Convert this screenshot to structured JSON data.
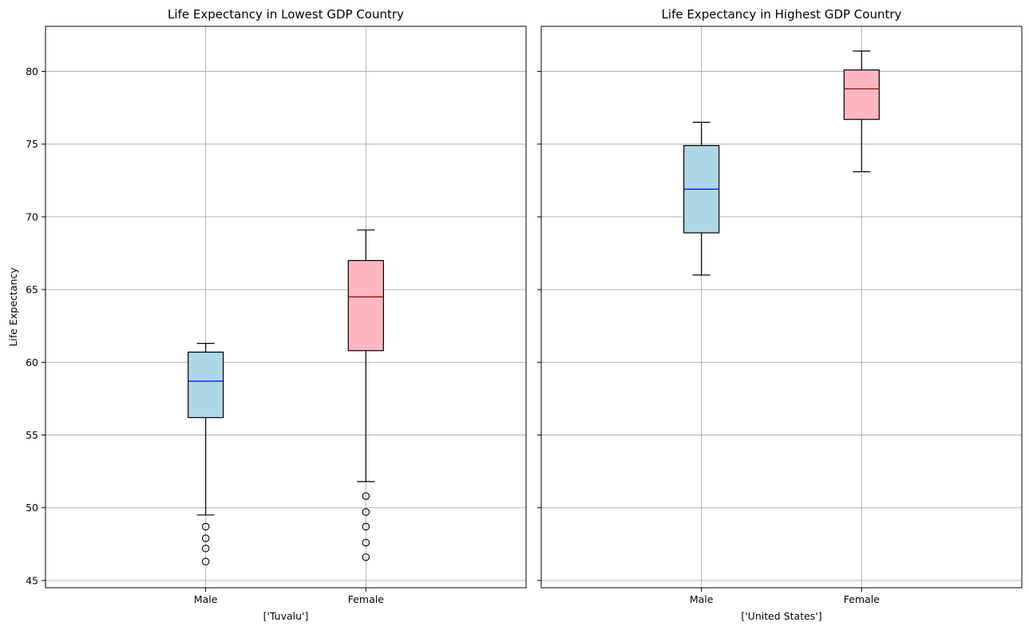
{
  "chart_data": [
    {
      "type": "boxplot",
      "title": "Life Expectancy in Lowest GDP Country",
      "xlabel": "['Tuvalu']",
      "ylabel": "Life Expectancy",
      "ylim": [
        44.5,
        83.1
      ],
      "yticks": [
        45,
        50,
        55,
        60,
        65,
        70,
        75,
        80
      ],
      "grid": true,
      "categories": [
        "Male",
        "Female"
      ],
      "boxes": [
        {
          "category": "Male",
          "whisker_low": 49.5,
          "q1": 56.2,
          "median": 58.7,
          "q3": 60.7,
          "whisker_high": 61.3,
          "outliers": [
            48.7,
            47.9,
            47.2,
            46.3
          ],
          "fill": "#add8e6",
          "median_color": "#0000ff"
        },
        {
          "category": "Female",
          "whisker_low": 51.8,
          "q1": 60.8,
          "median": 64.5,
          "q3": 67.0,
          "whisker_high": 69.1,
          "outliers": [
            50.8,
            49.7,
            48.7,
            47.6,
            46.6
          ],
          "fill": "#ffb6c1",
          "median_color": "#8b0000"
        }
      ]
    },
    {
      "type": "boxplot",
      "title": "Life Expectancy in Highest GDP Country",
      "xlabel": "['United States']",
      "ylabel": "",
      "ylim": [
        44.5,
        83.1
      ],
      "yticks": [
        45,
        50,
        55,
        60,
        65,
        70,
        75,
        80
      ],
      "grid": true,
      "categories": [
        "Male",
        "Female"
      ],
      "boxes": [
        {
          "category": "Male",
          "whisker_low": 66.0,
          "q1": 68.9,
          "median": 71.9,
          "q3": 74.9,
          "whisker_high": 76.5,
          "outliers": [],
          "fill": "#add8e6",
          "median_color": "#0000ff"
        },
        {
          "category": "Female",
          "whisker_low": 73.1,
          "q1": 76.7,
          "median": 78.8,
          "q3": 80.1,
          "whisker_high": 81.4,
          "outliers": [],
          "fill": "#ffb6c1",
          "median_color": "#8b0000"
        }
      ]
    }
  ]
}
